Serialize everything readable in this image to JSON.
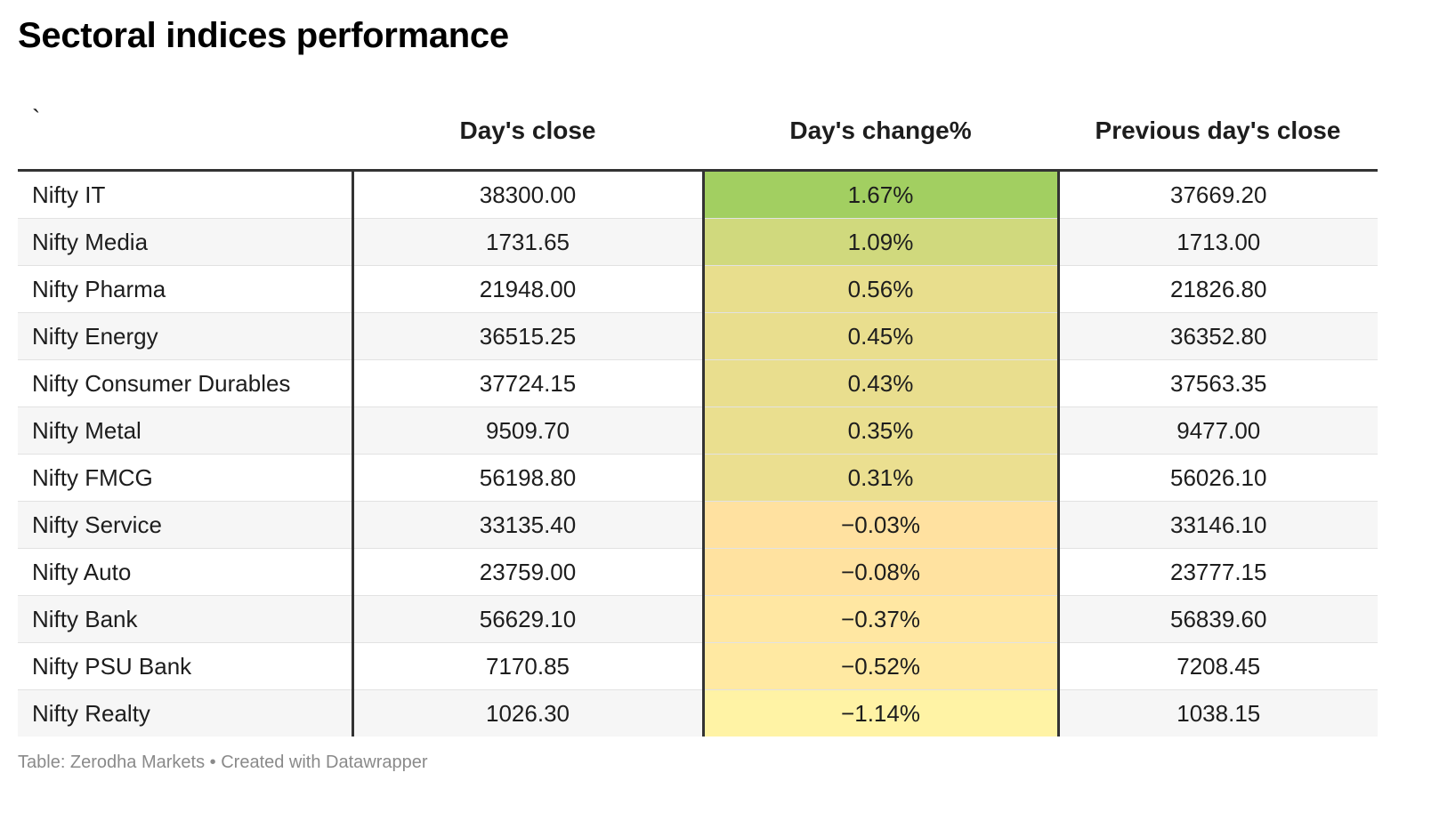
{
  "title": "Sectoral indices performance",
  "footer": "Table: Zerodha Markets • Created with Datawrapper",
  "colors": {
    "max_green": "#a2cf61",
    "mid_yellow": "#e4de8a",
    "min_yellow": "#fff3a5"
  },
  "chart_data": {
    "type": "table",
    "title": "Sectoral indices performance",
    "columns": [
      "`",
      "Day's close",
      "Day's change%",
      "Previous day's close"
    ],
    "rows": [
      {
        "name": "Nifty IT",
        "close": "38300.00",
        "change": "1.67%",
        "prev": "37669.20",
        "change_value": 1.67
      },
      {
        "name": "Nifty Media",
        "close": "1731.65",
        "change": "1.09%",
        "prev": "1713.00",
        "change_value": 1.09
      },
      {
        "name": "Nifty Pharma",
        "close": "21948.00",
        "change": "0.56%",
        "prev": "21826.80",
        "change_value": 0.56
      },
      {
        "name": "Nifty Energy",
        "close": "36515.25",
        "change": "0.45%",
        "prev": "36352.80",
        "change_value": 0.45
      },
      {
        "name": "Nifty Consumer Durables",
        "close": "37724.15",
        "change": "0.43%",
        "prev": "37563.35",
        "change_value": 0.43
      },
      {
        "name": "Nifty Metal",
        "close": "9509.70",
        "change": "0.35%",
        "prev": "9477.00",
        "change_value": 0.35
      },
      {
        "name": "Nifty FMCG",
        "close": "56198.80",
        "change": "0.31%",
        "prev": "56026.10",
        "change_value": 0.31
      },
      {
        "name": "Nifty Service",
        "close": "33135.40",
        "change": "−0.03%",
        "prev": "33146.10",
        "change_value": -0.03
      },
      {
        "name": "Nifty Auto",
        "close": "23759.00",
        "change": "−0.08%",
        "prev": "23777.15",
        "change_value": -0.08
      },
      {
        "name": "Nifty Bank",
        "close": "56629.10",
        "change": "−0.37%",
        "prev": "56839.60",
        "change_value": -0.37
      },
      {
        "name": "Nifty PSU Bank",
        "close": "7170.85",
        "change": "−0.52%",
        "prev": "7208.45",
        "change_value": -0.52
      },
      {
        "name": "Nifty Realty",
        "close": "1026.30",
        "change": "−1.14%",
        "prev": "1038.15",
        "change_value": -1.14
      }
    ]
  }
}
